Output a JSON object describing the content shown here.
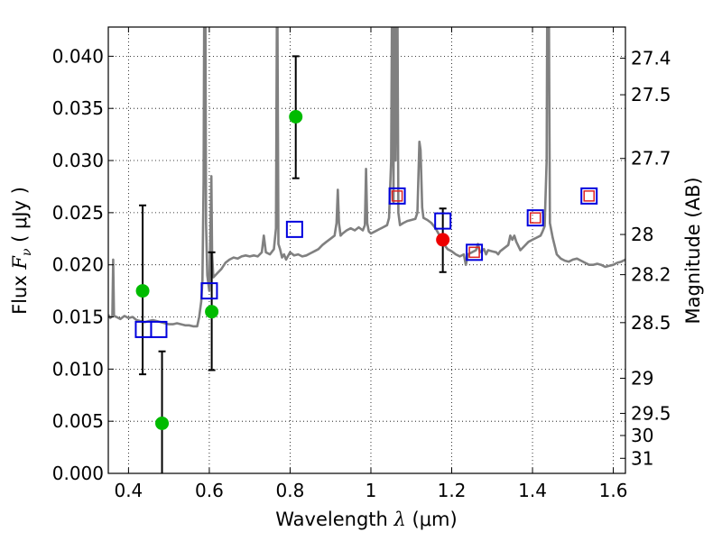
{
  "chart_data": {
    "type": "scatter",
    "xlabel": "Wavelength  λ (μm)",
    "ylabel": "Flux  F_ν  ( μJy )",
    "ylabel_parts": {
      "prefix": "Flux  ",
      "var": "F",
      "sub": "ν",
      "suffix": "  ( μJy )"
    },
    "xlabel_parts": {
      "prefix": "Wavelength  ",
      "var": "λ",
      "suffix": " (μm)"
    },
    "y2label": "Magnitude (AB)",
    "xlim": [
      0.35,
      1.63
    ],
    "ylim": [
      0.0,
      0.0428
    ],
    "grid": true,
    "x_ticks": [
      0.4,
      0.6,
      0.8,
      1.0,
      1.2,
      1.4,
      1.6
    ],
    "x_tick_labels": [
      "0.4",
      "0.6",
      "0.8",
      "1",
      "1.2",
      "1.4",
      "1.6"
    ],
    "y_ticks": [
      0.0,
      0.005,
      0.01,
      0.015,
      0.02,
      0.025,
      0.03,
      0.035,
      0.04
    ],
    "y_tick_labels": [
      "0.000",
      "0.005",
      "0.010",
      "0.015",
      "0.020",
      "0.025",
      "0.030",
      "0.035",
      "0.040"
    ],
    "mag_ticks": [
      27.4,
      27.5,
      27.7,
      28,
      28.2,
      28.5,
      29,
      29.5,
      30,
      31
    ],
    "mag_tick_labels": [
      "27.4",
      "27.5",
      "27.7",
      "28",
      "28.2",
      "28.5",
      "29",
      "29.5",
      "30",
      "31"
    ],
    "colors": {
      "model": "#808080",
      "observed": "#00bb00",
      "observed_highlight": "#ee0000",
      "synthetic": "#0000dd",
      "synthetic_inner": "#dd2222",
      "errorbar": "#000000"
    },
    "series": [
      {
        "kind": "line",
        "points": [
          [
            0.35,
            0.0152
          ],
          [
            0.355,
            0.0149
          ],
          [
            0.36,
            0.0151
          ],
          [
            0.362,
            0.0205
          ],
          [
            0.364,
            0.0151
          ],
          [
            0.37,
            0.015
          ],
          [
            0.38,
            0.0148
          ],
          [
            0.39,
            0.0151
          ],
          [
            0.4,
            0.0149
          ],
          [
            0.41,
            0.015
          ],
          [
            0.42,
            0.0147
          ],
          [
            0.43,
            0.0146
          ],
          [
            0.44,
            0.0145
          ],
          [
            0.45,
            0.0146
          ],
          [
            0.46,
            0.0147
          ],
          [
            0.47,
            0.0146
          ],
          [
            0.48,
            0.0145
          ],
          [
            0.49,
            0.0144
          ],
          [
            0.5,
            0.0143
          ],
          [
            0.51,
            0.0143
          ],
          [
            0.52,
            0.0144
          ],
          [
            0.53,
            0.0143
          ],
          [
            0.54,
            0.0142
          ],
          [
            0.55,
            0.0142
          ],
          [
            0.56,
            0.0141
          ],
          [
            0.57,
            0.0141
          ],
          [
            0.575,
            0.015
          ],
          [
            0.58,
            0.0165
          ],
          [
            0.583,
            0.0185
          ],
          [
            0.586,
            0.028
          ],
          [
            0.588,
            0.05
          ],
          [
            0.59,
            0.05
          ],
          [
            0.592,
            0.024
          ],
          [
            0.595,
            0.019
          ],
          [
            0.6,
            0.0175
          ],
          [
            0.603,
            0.024
          ],
          [
            0.605,
            0.0285
          ],
          [
            0.607,
            0.021
          ],
          [
            0.61,
            0.0188
          ],
          [
            0.62,
            0.0192
          ],
          [
            0.63,
            0.0196
          ],
          [
            0.64,
            0.0202
          ],
          [
            0.65,
            0.0205
          ],
          [
            0.66,
            0.0207
          ],
          [
            0.67,
            0.0206
          ],
          [
            0.68,
            0.0208
          ],
          [
            0.69,
            0.0209
          ],
          [
            0.7,
            0.0208
          ],
          [
            0.71,
            0.0209
          ],
          [
            0.72,
            0.0208
          ],
          [
            0.73,
            0.0212
          ],
          [
            0.735,
            0.0228
          ],
          [
            0.74,
            0.0212
          ],
          [
            0.75,
            0.021
          ],
          [
            0.76,
            0.0215
          ],
          [
            0.765,
            0.0235
          ],
          [
            0.768,
            0.05
          ],
          [
            0.771,
            0.022
          ],
          [
            0.775,
            0.0215
          ],
          [
            0.78,
            0.0207
          ],
          [
            0.785,
            0.021
          ],
          [
            0.79,
            0.0205
          ],
          [
            0.8,
            0.0212
          ],
          [
            0.81,
            0.0209
          ],
          [
            0.82,
            0.021
          ],
          [
            0.83,
            0.0208
          ],
          [
            0.84,
            0.0209
          ],
          [
            0.85,
            0.0211
          ],
          [
            0.86,
            0.0213
          ],
          [
            0.87,
            0.0215
          ],
          [
            0.88,
            0.0219
          ],
          [
            0.89,
            0.0222
          ],
          [
            0.9,
            0.0225
          ],
          [
            0.91,
            0.0228
          ],
          [
            0.915,
            0.024
          ],
          [
            0.918,
            0.0272
          ],
          [
            0.921,
            0.024
          ],
          [
            0.925,
            0.0228
          ],
          [
            0.93,
            0.023
          ],
          [
            0.94,
            0.0233
          ],
          [
            0.95,
            0.0235
          ],
          [
            0.96,
            0.0233
          ],
          [
            0.97,
            0.0236
          ],
          [
            0.98,
            0.0233
          ],
          [
            0.985,
            0.0238
          ],
          [
            0.988,
            0.0292
          ],
          [
            0.991,
            0.024
          ],
          [
            0.995,
            0.0232
          ],
          [
            1.0,
            0.023
          ],
          [
            1.01,
            0.0232
          ],
          [
            1.02,
            0.0234
          ],
          [
            1.03,
            0.0236
          ],
          [
            1.04,
            0.0238
          ],
          [
            1.045,
            0.0245
          ],
          [
            1.05,
            0.03
          ],
          [
            1.053,
            0.05
          ],
          [
            1.056,
            0.026
          ],
          [
            1.058,
            0.05
          ],
          [
            1.061,
            0.03
          ],
          [
            1.065,
            0.05
          ],
          [
            1.068,
            0.025
          ],
          [
            1.072,
            0.0238
          ],
          [
            1.08,
            0.024
          ],
          [
            1.09,
            0.0242
          ],
          [
            1.1,
            0.0243
          ],
          [
            1.11,
            0.0244
          ],
          [
            1.115,
            0.025
          ],
          [
            1.12,
            0.0318
          ],
          [
            1.123,
            0.031
          ],
          [
            1.127,
            0.0255
          ],
          [
            1.13,
            0.0245
          ],
          [
            1.14,
            0.0243
          ],
          [
            1.15,
            0.024
          ],
          [
            1.16,
            0.0235
          ],
          [
            1.17,
            0.0228
          ],
          [
            1.18,
            0.022
          ],
          [
            1.19,
            0.0215
          ],
          [
            1.2,
            0.0213
          ],
          [
            1.21,
            0.021
          ],
          [
            1.22,
            0.0208
          ],
          [
            1.23,
            0.021
          ],
          [
            1.235,
            0.02
          ],
          [
            1.24,
            0.021
          ],
          [
            1.25,
            0.0212
          ],
          [
            1.26,
            0.0214
          ],
          [
            1.265,
            0.022
          ],
          [
            1.27,
            0.0212
          ],
          [
            1.28,
            0.0215
          ],
          [
            1.285,
            0.021
          ],
          [
            1.29,
            0.0214
          ],
          [
            1.3,
            0.0213
          ],
          [
            1.31,
            0.0212
          ],
          [
            1.315,
            0.021
          ],
          [
            1.32,
            0.0213
          ],
          [
            1.33,
            0.0216
          ],
          [
            1.34,
            0.0219
          ],
          [
            1.345,
            0.0228
          ],
          [
            1.35,
            0.0224
          ],
          [
            1.355,
            0.0228
          ],
          [
            1.36,
            0.0222
          ],
          [
            1.37,
            0.0214
          ],
          [
            1.38,
            0.0218
          ],
          [
            1.39,
            0.0222
          ],
          [
            1.4,
            0.0224
          ],
          [
            1.41,
            0.0226
          ],
          [
            1.42,
            0.0228
          ],
          [
            1.425,
            0.0232
          ],
          [
            1.43,
            0.0237
          ],
          [
            1.435,
            0.03
          ],
          [
            1.437,
            0.05
          ],
          [
            1.44,
            0.05
          ],
          [
            1.443,
            0.024
          ],
          [
            1.45,
            0.0226
          ],
          [
            1.46,
            0.021
          ],
          [
            1.47,
            0.0206
          ],
          [
            1.48,
            0.0204
          ],
          [
            1.49,
            0.0203
          ],
          [
            1.5,
            0.0205
          ],
          [
            1.51,
            0.0206
          ],
          [
            1.52,
            0.0204
          ],
          [
            1.53,
            0.0202
          ],
          [
            1.54,
            0.02
          ],
          [
            1.55,
            0.02
          ],
          [
            1.56,
            0.0201
          ],
          [
            1.57,
            0.02
          ],
          [
            1.58,
            0.0198
          ],
          [
            1.59,
            0.0199
          ],
          [
            1.6,
            0.02
          ],
          [
            1.61,
            0.0202
          ],
          [
            1.62,
            0.0203
          ],
          [
            1.63,
            0.0205
          ]
        ]
      },
      {
        "kind": "errorbar-points",
        "points": [
          {
            "x": 0.435,
            "y": 0.0175,
            "yerr_low": 0.0095,
            "yerr_high": 0.0257,
            "color": "green"
          },
          {
            "x": 0.483,
            "y": 0.0048,
            "yerr_low": 0.0,
            "yerr_high": 0.0117,
            "color": "green"
          },
          {
            "x": 0.606,
            "y": 0.0155,
            "yerr_low": 0.0099,
            "yerr_high": 0.0212,
            "color": "green"
          },
          {
            "x": 0.814,
            "y": 0.0342,
            "yerr_low": 0.0283,
            "yerr_high": 0.04,
            "color": "green"
          },
          {
            "x": 1.178,
            "y": 0.0224,
            "yerr_low": 0.0193,
            "yerr_high": 0.0254,
            "color": "red"
          }
        ]
      },
      {
        "kind": "squares",
        "points": [
          {
            "x": 0.437,
            "y": 0.0138,
            "inner": false
          },
          {
            "x": 0.475,
            "y": 0.0138,
            "inner": false
          },
          {
            "x": 0.6,
            "y": 0.0175,
            "inner": false
          },
          {
            "x": 0.811,
            "y": 0.0234,
            "inner": false
          },
          {
            "x": 1.065,
            "y": 0.0266,
            "inner": true
          },
          {
            "x": 1.178,
            "y": 0.0242,
            "inner": false
          },
          {
            "x": 1.256,
            "y": 0.0212,
            "inner": true
          },
          {
            "x": 1.407,
            "y": 0.0245,
            "inner": true
          },
          {
            "x": 1.54,
            "y": 0.0266,
            "inner": true
          }
        ]
      }
    ]
  }
}
